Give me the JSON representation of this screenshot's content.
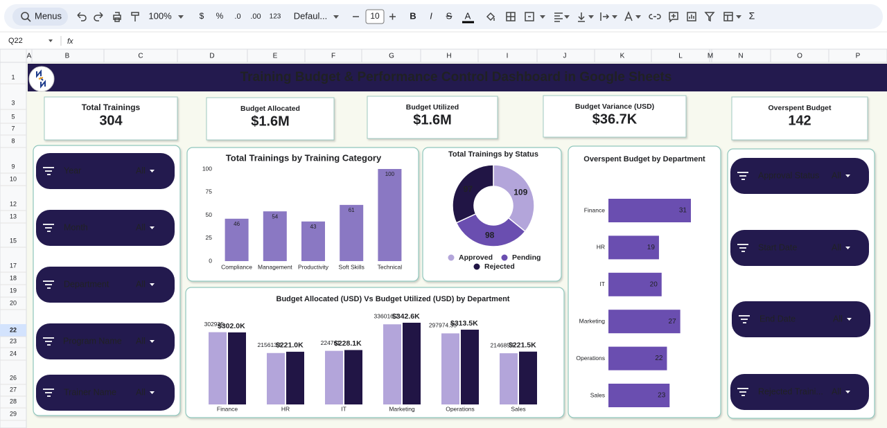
{
  "toolbar": {
    "search": "Menus",
    "zoom": "100%",
    "currency": "$",
    "percent": "%",
    "decrease_decimal": ".0",
    "increase_decimal": ".00",
    "format": "123",
    "font": "Defaul...",
    "font_size": "10",
    "bold": "B",
    "italic": "I",
    "strike": "S",
    "text_color": "A",
    "functions": "Σ"
  },
  "formula_bar": {
    "cell": "Q22",
    "fx": "fx"
  },
  "columns": [
    "A",
    "B",
    "C",
    "D",
    "E",
    "F",
    "G",
    "H",
    "I",
    "J",
    "K",
    "L",
    "M",
    "N",
    "O",
    "P"
  ],
  "rows": [
    "1",
    "3",
    "5",
    "7",
    "8",
    "9",
    "10",
    "12",
    "13",
    "15",
    "17",
    "18",
    "19",
    "20",
    "22",
    "23",
    "24",
    "26",
    "27",
    "28",
    "29"
  ],
  "title": "Training Budget & Performance Control Dashboard in Google Sheets",
  "kpis": [
    {
      "label": "Total Trainings",
      "value": "304"
    },
    {
      "label": "Budget Allocated",
      "value": "$1.6M"
    },
    {
      "label": "Budget Utilized",
      "value": "$1.6M"
    },
    {
      "label": "Budget Variance (USD)",
      "value": "$36.7K"
    },
    {
      "label": "Overspent Budget",
      "value": "142"
    }
  ],
  "filters_left": [
    {
      "label": "Year",
      "value": "All"
    },
    {
      "label": "Month",
      "value": "All"
    },
    {
      "label": "Department",
      "value": "All"
    },
    {
      "label": "Program Name",
      "value": "All"
    },
    {
      "label": "Trainer Name",
      "value": "All"
    }
  ],
  "filters_right": [
    {
      "label": "Approval Status",
      "value": "All"
    },
    {
      "label": "Start Date",
      "value": "All"
    },
    {
      "label": "End Date",
      "value": "All"
    },
    {
      "label": "Rejected Traini...",
      "value": "All"
    }
  ],
  "chart_data": [
    {
      "type": "bar",
      "title": "Total Trainings by Training Category",
      "categories": [
        "Compliance",
        "Management",
        "Productivity",
        "Soft Skills",
        "Technical"
      ],
      "values": [
        46,
        54,
        43,
        61,
        100
      ],
      "color": "#8a78c3",
      "ylim": [
        0,
        100
      ],
      "yticks": [
        0,
        25,
        50,
        75,
        100
      ]
    },
    {
      "type": "pie",
      "title": "Total Trainings by Status",
      "categories": [
        "Approved",
        "Pending",
        "Rejected"
      ],
      "values": [
        109,
        98,
        97
      ],
      "colors": [
        "#b3a5da",
        "#6a4eb0",
        "#211545"
      ]
    },
    {
      "type": "barh",
      "title": "Overspent Budget by Department",
      "categories": [
        "Finance",
        "HR",
        "IT",
        "Marketing",
        "Operations",
        "Sales"
      ],
      "values": [
        31,
        19,
        20,
        27,
        22,
        23
      ],
      "color": "#6a4eb0"
    },
    {
      "type": "grouped_bar",
      "title": "Budget Allocated (USD) Vs Budget Utilized (USD) by Department",
      "categories": [
        "Finance",
        "HR",
        "IT",
        "Marketing",
        "Operations",
        "Sales"
      ],
      "series": [
        {
          "color": "#b3a5da",
          "values": [
            302935,
            215613.5,
            224761,
            336016.7,
            297974.35,
            214685.5
          ]
        },
        {
          "color": "#211545",
          "values": [
            302000,
            221000,
            228100,
            342600,
            313500,
            221500
          ],
          "value_labels": [
            "$302.0K",
            "$221.0K",
            "$228.1K",
            "$342.6K",
            "$313.5K",
            "$221.5K"
          ]
        }
      ]
    }
  ]
}
